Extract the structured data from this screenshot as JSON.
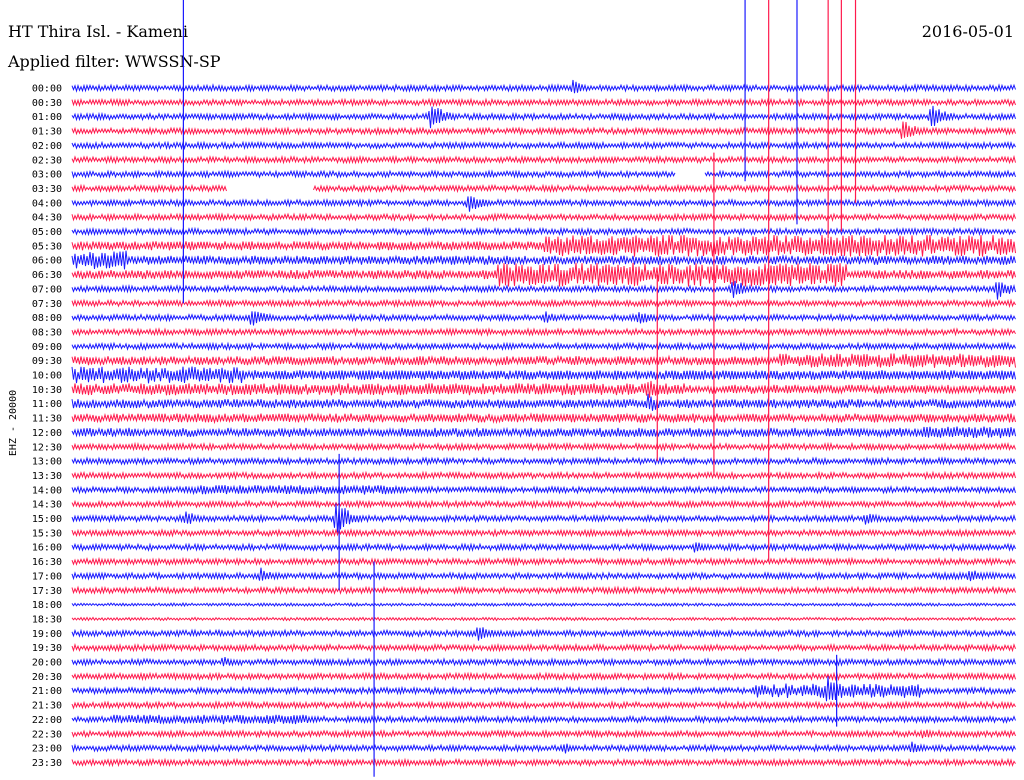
{
  "header": {
    "station": "HT Thira Isl. - Kameni",
    "filter": "Applied filter: WWSSN-SP",
    "date": "2016-05-01"
  },
  "colors": {
    "even": "#1a1aff",
    "odd": "#ff1a4d"
  },
  "chart_data": {
    "type": "line",
    "ylabel": "EHZ - 20000",
    "rows": [
      "00:00",
      "00:30",
      "01:00",
      "01:30",
      "02:00",
      "02:30",
      "03:00",
      "03:30",
      "04:00",
      "04:30",
      "05:00",
      "05:30",
      "06:00",
      "06:30",
      "07:00",
      "07:30",
      "08:00",
      "08:30",
      "09:00",
      "09:30",
      "10:00",
      "10:30",
      "11:00",
      "11:30",
      "12:00",
      "12:30",
      "13:00",
      "13:30",
      "14:00",
      "14:30",
      "15:00",
      "15:30",
      "16:00",
      "16:30",
      "17:00",
      "17:30",
      "18:00",
      "18:30",
      "19:00",
      "19:30",
      "20:00",
      "20:30",
      "21:00",
      "21:30",
      "22:00",
      "22:30",
      "23:00",
      "23:30"
    ],
    "row_minutes": 30,
    "grid": false,
    "noise_level": [
      2,
      2,
      2,
      2,
      2,
      2,
      2,
      2,
      2,
      2,
      2,
      3,
      3,
      3,
      2,
      2,
      2,
      2,
      2,
      3,
      3,
      3,
      3,
      3,
      3,
      2,
      2,
      2,
      2,
      2,
      2,
      2,
      2,
      2,
      2,
      2,
      1,
      1,
      2,
      2,
      2,
      2,
      2,
      2,
      2,
      2,
      2,
      2
    ],
    "noisy_segments": [
      {
        "row": 11,
        "from": 0.5,
        "to": 1.0,
        "amp": 9
      },
      {
        "row": 12,
        "from": 0.0,
        "to": 0.06,
        "amp": 8
      },
      {
        "row": 13,
        "from": 0.45,
        "to": 0.82,
        "amp": 10
      },
      {
        "row": 19,
        "from": 0.75,
        "to": 1.0,
        "amp": 6
      },
      {
        "row": 20,
        "from": 0.0,
        "to": 0.18,
        "amp": 7
      },
      {
        "row": 20,
        "from": 0.18,
        "to": 1.0,
        "amp": 4
      },
      {
        "row": 21,
        "from": 0.0,
        "to": 0.65,
        "amp": 5
      },
      {
        "row": 24,
        "from": 0.9,
        "to": 1.0,
        "amp": 5
      },
      {
        "row": 28,
        "from": 0.12,
        "to": 0.35,
        "amp": 4
      },
      {
        "row": 42,
        "from": 0.72,
        "to": 0.9,
        "amp": 6
      },
      {
        "row": 44,
        "from": 0.04,
        "to": 0.25,
        "amp": 4
      }
    ],
    "events": [
      {
        "row": 0,
        "x": 0.53,
        "amp": 7
      },
      {
        "row": 2,
        "x": 0.38,
        "amp": 14
      },
      {
        "row": 2,
        "x": 0.91,
        "amp": 12
      },
      {
        "row": 3,
        "x": 0.88,
        "amp": 10
      },
      {
        "row": 8,
        "x": 0.42,
        "amp": 9
      },
      {
        "row": 14,
        "x": 0.7,
        "amp": 9
      },
      {
        "row": 14,
        "x": 0.98,
        "amp": 10
      },
      {
        "row": 16,
        "x": 0.19,
        "amp": 9
      },
      {
        "row": 16,
        "x": 0.5,
        "amp": 6
      },
      {
        "row": 16,
        "x": 0.6,
        "amp": 7
      },
      {
        "row": 21,
        "x": 0.61,
        "amp": 9
      },
      {
        "row": 22,
        "x": 0.61,
        "amp": 9
      },
      {
        "row": 30,
        "x": 0.12,
        "amp": 7
      },
      {
        "row": 30,
        "x": 0.28,
        "amp": 16
      },
      {
        "row": 30,
        "x": 0.84,
        "amp": 6
      },
      {
        "row": 32,
        "x": 0.66,
        "amp": 6
      },
      {
        "row": 34,
        "x": 0.2,
        "amp": 7
      },
      {
        "row": 34,
        "x": 0.95,
        "amp": 7
      },
      {
        "row": 38,
        "x": 0.43,
        "amp": 8
      },
      {
        "row": 40,
        "x": 0.16,
        "amp": 5
      },
      {
        "row": 42,
        "x": 0.8,
        "amp": 14
      },
      {
        "row": 45,
        "x": 0.9,
        "amp": 5
      },
      {
        "row": 46,
        "x": 0.52,
        "amp": 6
      },
      {
        "row": 46,
        "x": 0.89,
        "amp": 6
      }
    ],
    "spikes": [
      {
        "x": 0.118,
        "from_row": 0.0,
        "to_row": 15.0,
        "series": "even"
      },
      {
        "x": 0.713,
        "from_row": 0.0,
        "to_row": 6.5,
        "series": "even"
      },
      {
        "x": 0.738,
        "from_row": 0.0,
        "to_row": 33.0,
        "series": "odd"
      },
      {
        "x": 0.768,
        "from_row": 0.0,
        "to_row": 9.5,
        "series": "even"
      },
      {
        "x": 0.801,
        "from_row": 0.0,
        "to_row": 10.5,
        "series": "odd"
      },
      {
        "x": 0.815,
        "from_row": 0.0,
        "to_row": 10.0,
        "series": "odd"
      },
      {
        "x": 0.83,
        "from_row": 0.0,
        "to_row": 8.0,
        "series": "odd"
      },
      {
        "x": 0.68,
        "from_row": 4.5,
        "to_row": 27.0,
        "series": "odd"
      },
      {
        "x": 0.283,
        "from_row": 25.5,
        "to_row": 35.0,
        "series": "even"
      },
      {
        "x": 0.32,
        "from_row": 33.0,
        "to_row": 48.0,
        "series": "even"
      },
      {
        "x": 0.81,
        "from_row": 39.5,
        "to_row": 44.5,
        "series": "even"
      },
      {
        "x": 0.62,
        "from_row": 13.0,
        "to_row": 26.0,
        "series": "odd"
      }
    ],
    "gaps": [
      {
        "row": 7,
        "from": 0.165,
        "to": 0.255
      },
      {
        "row": 6,
        "from": 0.64,
        "to": 0.67
      }
    ]
  }
}
